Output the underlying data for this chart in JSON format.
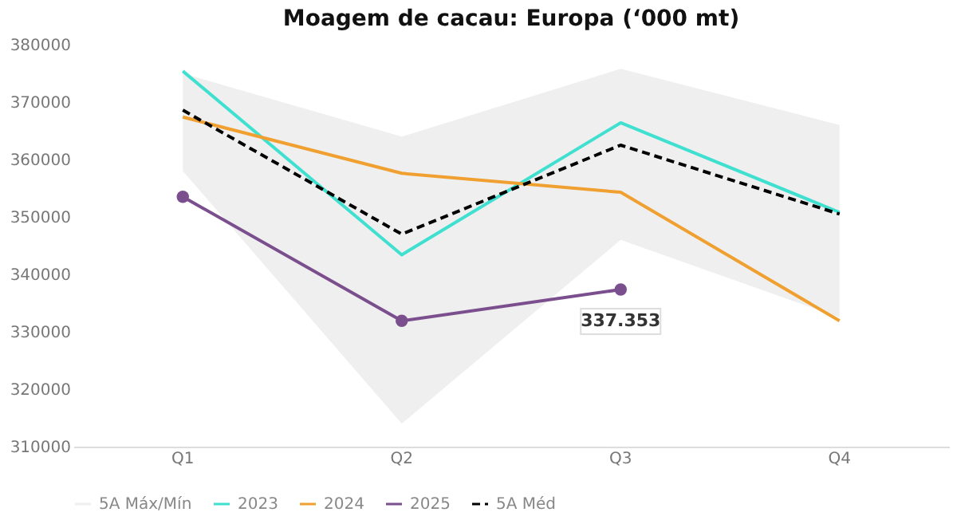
{
  "chart_data": {
    "type": "line",
    "title": "Moagem de cacau: Europa (‘000 mt)",
    "categories": [
      "Q1",
      "Q2",
      "Q3",
      "Q4"
    ],
    "ylim": [
      310000,
      380000
    ],
    "yticks": [
      310000,
      320000,
      330000,
      340000,
      350000,
      360000,
      370000,
      380000
    ],
    "grid": false,
    "legend": "bottom",
    "annotations": [
      {
        "text": "337.353",
        "x": "Q3",
        "y": 337353
      }
    ],
    "series": [
      {
        "name": "5A Máx/Mín",
        "type": "area",
        "color": "#efefef",
        "values": [
          null,
          null,
          null,
          null
        ],
        "lower": [
          358000,
          314000,
          346000,
          332500
        ],
        "upper": [
          375000,
          364000,
          375800,
          366000
        ]
      },
      {
        "name": "2023",
        "color": "#40e0d0",
        "values": [
          375400,
          343400,
          366400,
          350800
        ]
      },
      {
        "name": "2024",
        "color": "#f0a030",
        "values": [
          367400,
          357600,
          354300,
          331900
        ]
      },
      {
        "name": "2025",
        "color": "#7b4f8e",
        "marker": "circle",
        "values": [
          353500,
          331900,
          337353,
          null
        ]
      },
      {
        "name": "5A Méd",
        "color": "#000000",
        "line_style": "dashed",
        "values": [
          368600,
          347000,
          362500,
          350500
        ]
      }
    ]
  }
}
